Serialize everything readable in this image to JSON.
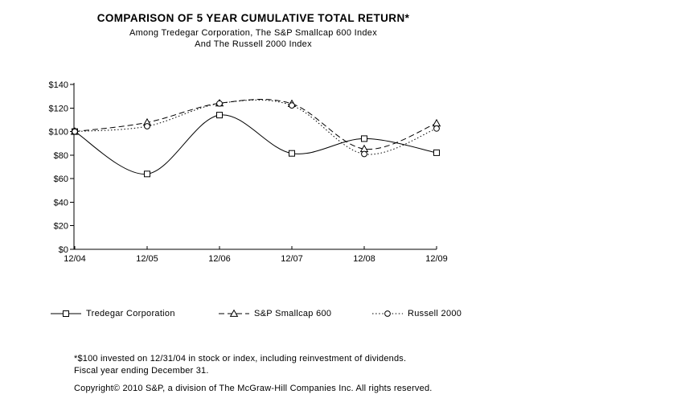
{
  "page": {
    "background_color": "#ffffff",
    "text_color": "#000000"
  },
  "header": {
    "title": "COMPARISON OF 5 YEAR CUMULATIVE TOTAL RETURN*",
    "subtitle_line1": "Among Tredegar Corporation, The S&P Smallcap 600 Index",
    "subtitle_line2": "And The Russell 2000 Index"
  },
  "chart_data": {
    "type": "line",
    "title": "COMPARISON OF 5 YEAR CUMULATIVE TOTAL RETURN*",
    "categories": [
      "12/04",
      "12/05",
      "12/06",
      "12/07",
      "12/08",
      "12/09"
    ],
    "series": [
      {
        "name": "Tredegar Corporation",
        "marker": "square",
        "line_style": "solid",
        "values": [
          100,
          64,
          114,
          81.5,
          94,
          82
        ]
      },
      {
        "name": "S&P Smallcap 600",
        "marker": "triangle",
        "line_style": "dashed",
        "values": [
          100,
          107.7,
          124,
          123.6,
          85.2,
          107
        ]
      },
      {
        "name": "Russell 2000",
        "marker": "circle",
        "line_style": "dotted",
        "values": [
          100,
          104.5,
          123.8,
          122.2,
          80.9,
          102.6
        ]
      }
    ],
    "y_ticks": [
      0,
      20,
      40,
      60,
      80,
      100,
      120,
      140
    ],
    "y_tick_labels": [
      "$0",
      "$20",
      "$40",
      "$60",
      "$80",
      "$100",
      "$120",
      "$140"
    ],
    "ylim": [
      0,
      140
    ],
    "xlabel": "",
    "ylabel": "",
    "grid": false,
    "legend_position": "bottom",
    "line_color": "#000000",
    "smoothed": true
  },
  "footnotes": {
    "line1": "*$100 invested on 12/31/04 in stock or index, including reinvestment of dividends.",
    "line2": "Fiscal year ending December 31.",
    "copyright": "Copyright© 2010  S&P, a division of The McGraw-Hill Companies Inc. All rights reserved."
  }
}
